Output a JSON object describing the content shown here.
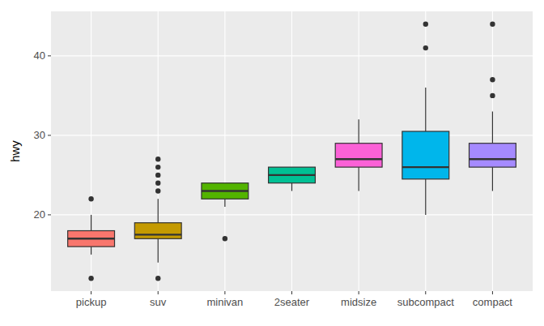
{
  "chart_data": {
    "type": "box",
    "y_label": "hwy",
    "categories": [
      "pickup",
      "suv",
      "minivan",
      "2seater",
      "midsize",
      "subcompact",
      "compact"
    ],
    "colors": [
      "#F8766D",
      "#C49A00",
      "#53B400",
      "#00C094",
      "#FB61D7",
      "#00B6EB",
      "#A58AFF"
    ],
    "boxes": [
      {
        "min": 15,
        "q1": 16,
        "median": 17,
        "q3": 18,
        "max": 20,
        "outliers": [
          12,
          22
        ]
      },
      {
        "min": 14,
        "q1": 17,
        "median": 17.5,
        "q3": 19,
        "max": 22,
        "outliers": [
          12,
          23,
          24,
          25,
          26,
          27
        ]
      },
      {
        "min": 21,
        "q1": 22,
        "median": 23,
        "q3": 24,
        "max": 24,
        "outliers": [
          17
        ]
      },
      {
        "min": 23,
        "q1": 24,
        "median": 25,
        "q3": 26,
        "max": 26,
        "outliers": []
      },
      {
        "min": 23,
        "q1": 26,
        "median": 27,
        "q3": 29,
        "max": 32,
        "outliers": []
      },
      {
        "min": 20,
        "q1": 24.5,
        "median": 26,
        "q3": 30.5,
        "max": 36,
        "outliers": [
          41,
          44
        ]
      },
      {
        "min": 23,
        "q1": 26,
        "median": 27,
        "q3": 29,
        "max": 33,
        "outliers": [
          35,
          37,
          44
        ]
      }
    ],
    "ylim": [
      10.4,
      45.6
    ],
    "yticks": [
      20,
      30,
      40
    ],
    "grid": true
  }
}
